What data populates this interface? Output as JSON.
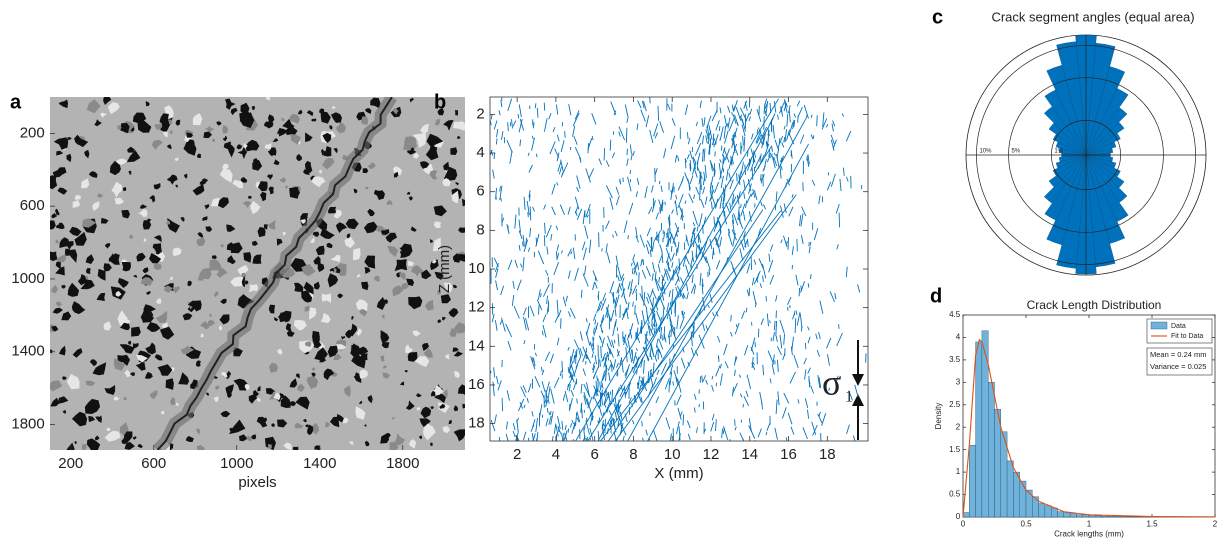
{
  "chart_data": [
    {
      "type": "image",
      "panel_label": "a",
      "xlabel": "pixels",
      "xlim": [
        100,
        2100
      ],
      "xticks": [
        200,
        600,
        1000,
        1400,
        1800
      ],
      "ylim": [
        0,
        1940
      ],
      "yticks": [
        200,
        600,
        1000,
        1400,
        1800
      ],
      "y_reversed": true
    },
    {
      "type": "trace_map",
      "panel_label": "b",
      "xlabel": "X (mm)",
      "ylabel": "Z (mm)",
      "xlim": [
        0.6,
        20.1
      ],
      "xticks": [
        2,
        4,
        6,
        8,
        10,
        12,
        14,
        16,
        18
      ],
      "ylim": [
        1.1,
        18.9
      ],
      "yticks": [
        2,
        4,
        6,
        8,
        10,
        12,
        14,
        16,
        18
      ],
      "y_reversed": true,
      "color": "#0072bd",
      "annotation": "σ",
      "annotation_subscript": "1"
    },
    {
      "type": "polar_histogram",
      "panel_label": "c",
      "title": "Crack segment angles (equal area)",
      "theta": [
        0,
        10,
        20,
        30,
        40,
        50,
        60,
        70,
        80,
        90,
        100,
        110,
        120,
        130,
        140,
        150,
        160,
        170,
        180,
        190,
        200,
        210,
        220,
        230,
        240,
        250,
        260,
        270,
        280,
        290,
        300,
        310,
        320,
        330,
        340,
        350
      ],
      "values": [
        12,
        10.5,
        7,
        4.5,
        2.8,
        1.8,
        1.2,
        0.8,
        0.6,
        0.5,
        0.6,
        0.8,
        1.2,
        1.8,
        2.8,
        4.5,
        7,
        10.5,
        11.8,
        10.8,
        7.2,
        4.3,
        2.9,
        1.7,
        1.1,
        0.8,
        0.6,
        0.5,
        0.6,
        0.8,
        1.1,
        1.7,
        2.9,
        4.3,
        7.2,
        10.8
      ],
      "rlim": [
        0,
        12
      ],
      "rticks": [
        {
          "value": 10,
          "label": "10%"
        },
        {
          "value": 5,
          "label": "5%"
        },
        {
          "value": 1,
          "label": "1%"
        }
      ],
      "color": "#0072bd"
    },
    {
      "type": "histogram",
      "panel_label": "d",
      "title": "Crack Length Distribution",
      "xlabel": "Crack lengths (mm)",
      "ylabel": "Density",
      "bins": [
        0,
        0.05,
        0.1,
        0.15,
        0.2,
        0.25,
        0.3,
        0.35,
        0.4,
        0.45,
        0.5,
        0.55,
        0.6,
        0.65,
        0.7,
        0.75,
        0.8,
        0.85,
        0.9,
        0.95,
        1,
        1.05,
        1.1,
        1.15,
        1.2,
        1.25,
        1.3,
        1.35,
        1.4,
        1.45,
        1.5,
        1.55,
        1.6,
        1.65,
        1.7,
        1.75,
        1.8,
        1.85,
        1.9,
        1.95,
        2
      ],
      "series": [
        {
          "name": "Data",
          "color": "#6fb3dc",
          "values": [
            0.1,
            1.6,
            3.9,
            4.15,
            3.0,
            2.4,
            1.9,
            1.25,
            1.0,
            0.8,
            0.6,
            0.45,
            0.3,
            0.25,
            0.2,
            0.12,
            0.1,
            0.08,
            0.05,
            0.05,
            0.04,
            0.03,
            0.02,
            0.02,
            0.02,
            0.01,
            0.01,
            0.01,
            0.01,
            0.01,
            0.01,
            0.01,
            0.01,
            0.01,
            0.01,
            0.01,
            0.01,
            0.01,
            0.01,
            0.01
          ]
        },
        {
          "name": "Fit to Data",
          "color": "#d95319",
          "x": [
            0,
            0.05,
            0.1,
            0.13,
            0.15,
            0.2,
            0.25,
            0.3,
            0.4,
            0.5,
            0.6,
            0.8,
            1,
            1.5,
            2
          ],
          "values": [
            0,
            1.6,
            3.6,
            3.95,
            3.9,
            3.4,
            2.7,
            2.0,
            1.1,
            0.6,
            0.35,
            0.12,
            0.05,
            0.01,
            0
          ]
        }
      ],
      "xlim": [
        0,
        2
      ],
      "xticks": [
        0,
        0.5,
        1,
        1.5,
        2
      ],
      "ylim": [
        0,
        4.5
      ],
      "yticks": [
        0,
        0.5,
        1,
        1.5,
        2,
        2.5,
        3,
        3.5,
        4,
        4.5
      ],
      "legend": "upper right",
      "annotations": [
        "Mean = 0.24 mm",
        "Variance = 0.025"
      ]
    }
  ]
}
